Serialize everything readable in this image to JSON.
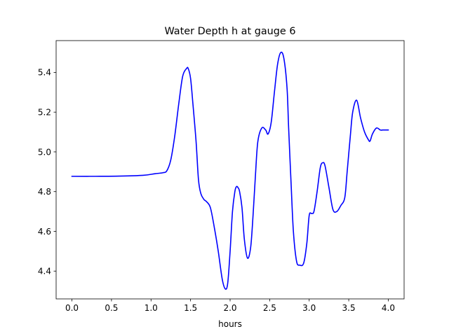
{
  "chart_data": {
    "type": "line",
    "title": "Water Depth h at gauge 6",
    "xlabel": "hours",
    "ylabel": "",
    "xlim": [
      -0.2,
      4.2
    ],
    "ylim": [
      4.26,
      5.56
    ],
    "xticks": [
      0.0,
      0.5,
      1.0,
      1.5,
      2.0,
      2.5,
      3.0,
      3.5,
      4.0
    ],
    "xtick_labels": [
      "0.0",
      "0.5",
      "1.0",
      "1.5",
      "2.0",
      "2.5",
      "3.0",
      "3.5",
      "4.0"
    ],
    "yticks": [
      4.4,
      4.6,
      4.8,
      5.0,
      5.2,
      5.4
    ],
    "ytick_labels": [
      "4.4",
      "4.6",
      "4.8",
      "5.0",
      "5.2",
      "5.4"
    ],
    "grid": false,
    "series": [
      {
        "color": "#0000ff",
        "x": [
          0.0,
          0.3,
          0.6,
          0.9,
          1.05,
          1.15,
          1.2,
          1.25,
          1.3,
          1.35,
          1.4,
          1.45,
          1.47,
          1.5,
          1.53,
          1.57,
          1.6,
          1.63,
          1.67,
          1.7,
          1.75,
          1.8,
          1.85,
          1.9,
          1.94,
          1.97,
          2.0,
          2.03,
          2.06,
          2.08,
          2.1,
          2.12,
          2.15,
          2.18,
          2.22,
          2.26,
          2.29,
          2.32,
          2.35,
          2.4,
          2.45,
          2.48,
          2.52,
          2.56,
          2.6,
          2.64,
          2.68,
          2.72,
          2.74,
          2.77,
          2.8,
          2.84,
          2.88,
          2.93,
          2.97,
          3.0,
          3.03,
          3.06,
          3.1,
          3.14,
          3.17,
          3.2,
          3.25,
          3.3,
          3.35,
          3.4,
          3.45,
          3.48,
          3.52,
          3.55,
          3.6,
          3.65,
          3.7,
          3.75,
          3.77,
          3.8,
          3.85,
          3.9,
          3.93,
          3.96,
          3.98,
          4.0
        ],
        "y": [
          4.877,
          4.877,
          4.878,
          4.882,
          4.89,
          4.895,
          4.905,
          4.96,
          5.08,
          5.24,
          5.38,
          5.42,
          5.42,
          5.37,
          5.24,
          5.05,
          4.86,
          4.79,
          4.76,
          4.75,
          4.72,
          4.62,
          4.5,
          4.36,
          4.31,
          4.34,
          4.5,
          4.7,
          4.8,
          4.825,
          4.82,
          4.8,
          4.72,
          4.56,
          4.465,
          4.52,
          4.68,
          4.88,
          5.05,
          5.12,
          5.11,
          5.09,
          5.15,
          5.3,
          5.44,
          5.5,
          5.47,
          5.32,
          5.12,
          4.85,
          4.6,
          4.45,
          4.43,
          4.44,
          4.54,
          4.68,
          4.69,
          4.7,
          4.8,
          4.92,
          4.945,
          4.93,
          4.82,
          4.71,
          4.7,
          4.73,
          4.77,
          4.9,
          5.08,
          5.2,
          5.26,
          5.17,
          5.1,
          5.06,
          5.055,
          5.09,
          5.12,
          5.11,
          5.11,
          5.11,
          5.11,
          5.11
        ]
      }
    ]
  }
}
